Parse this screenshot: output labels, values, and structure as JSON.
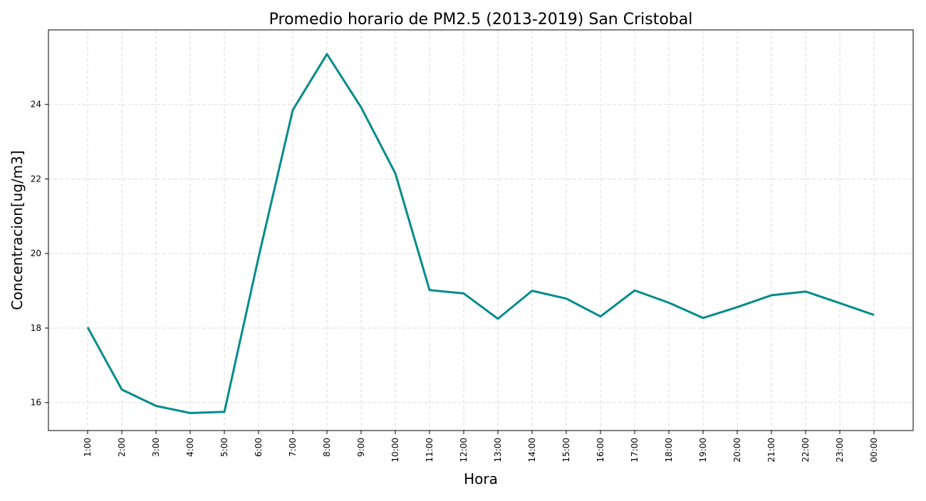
{
  "chart_data": {
    "type": "line",
    "title": "Promedio horario de PM2.5 (2013-2019) San Cristobal",
    "xlabel": "Hora",
    "ylabel": "Concentracion[ug/m3]",
    "categories": [
      "1:00",
      "2:00",
      "3:00",
      "4:00",
      "5:00",
      "6:00",
      "7:00",
      "8:00",
      "9:00",
      "10:00",
      "11:00",
      "12:00",
      "13:00",
      "14:00",
      "15:00",
      "16:00",
      "17:00",
      "18:00",
      "19:00",
      "20:00",
      "21:00",
      "22:00",
      "23:00",
      "00:00"
    ],
    "series": [
      {
        "values": [
          18.02,
          16.35,
          15.91,
          15.72,
          15.75,
          19.9,
          23.85,
          25.35,
          23.92,
          22.15,
          19.02,
          18.93,
          18.25,
          19.0,
          18.79,
          18.31,
          19.01,
          18.68,
          18.27,
          18.56,
          18.88,
          18.98,
          18.67,
          18.35
        ],
        "color": "#008b8b"
      }
    ],
    "yticks": [
      16,
      18,
      20,
      22,
      24
    ],
    "ylim": [
      15.25,
      26.0
    ],
    "grid": true,
    "legend": "none"
  }
}
